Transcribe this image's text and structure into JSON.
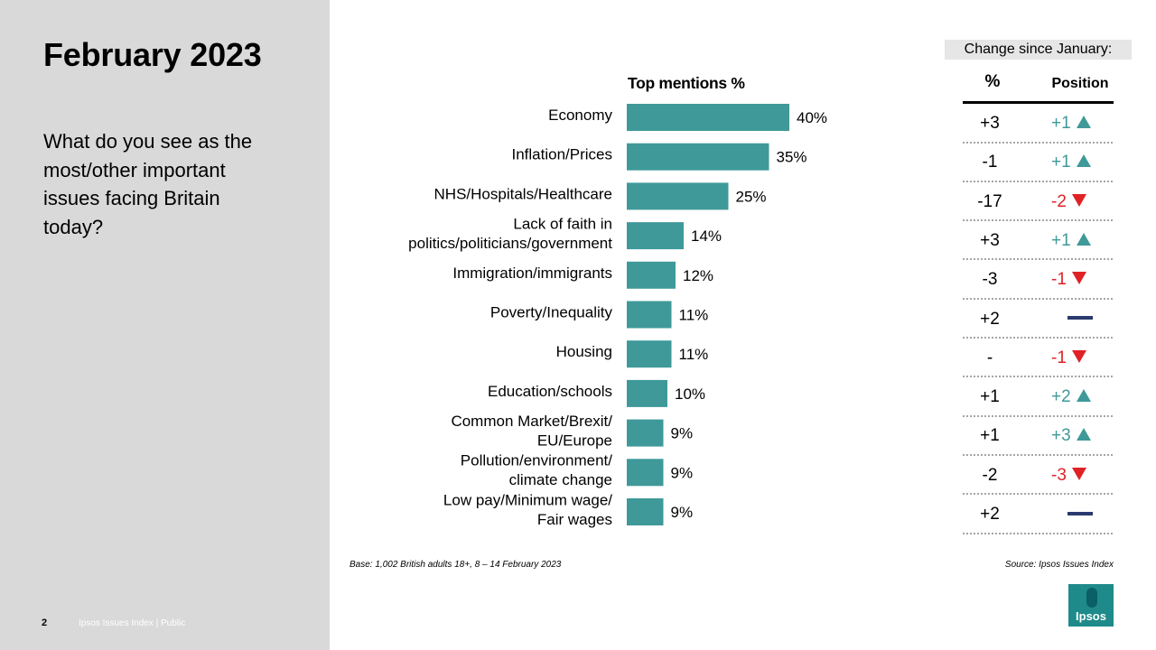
{
  "slide": {
    "title": "February 2023",
    "question": "What do you see as the most/other important issues facing Britain today?",
    "page_number": "2",
    "footer": "Ipsos Issues Index | Public",
    "base_note": "Base: 1,002 British adults 18+, 8 – 14 February 2023",
    "source_note": "Source: Ipsos Issues Index",
    "logo_text": "Ipsos"
  },
  "chart_data": {
    "type": "bar",
    "orientation": "horizontal",
    "title": "Top mentions %",
    "categories": [
      [
        "Economy"
      ],
      [
        "Inflation/Prices"
      ],
      [
        "NHS/Hospitals/Healthcare"
      ],
      [
        "Lack of faith in",
        "politics/politicians/government"
      ],
      [
        "Immigration/immigrants"
      ],
      [
        "Poverty/Inequality"
      ],
      [
        "Housing"
      ],
      [
        "Education/schools"
      ],
      [
        "Common Market/Brexit/",
        "EU/Europe"
      ],
      [
        "Pollution/environment/",
        "climate change"
      ],
      [
        "Low pay/Minimum wage/",
        "Fair wages"
      ]
    ],
    "values": [
      40,
      35,
      25,
      14,
      12,
      11,
      11,
      10,
      9,
      9,
      9
    ],
    "value_labels": [
      "40%",
      "35%",
      "25%",
      "14%",
      "12%",
      "11%",
      "11%",
      "10%",
      "9%",
      "9%",
      "9%"
    ],
    "bar_color": "#3f9999",
    "xlim": [
      0,
      40
    ],
    "grid": false
  },
  "change_table": {
    "header": "Change since January:",
    "col_pct": "%",
    "col_position": "Position",
    "rows": [
      {
        "pct": "+3",
        "position": "+1",
        "dir": "up"
      },
      {
        "pct": "-1",
        "position": "+1",
        "dir": "up"
      },
      {
        "pct": "-17",
        "position": "-2",
        "dir": "down"
      },
      {
        "pct": "+3",
        "position": "+1",
        "dir": "up"
      },
      {
        "pct": "-3",
        "position": "-1",
        "dir": "down"
      },
      {
        "pct": "+2",
        "position": "",
        "dir": "none"
      },
      {
        "pct": "-",
        "position": "-1",
        "dir": "down"
      },
      {
        "pct": "+1",
        "position": "+2",
        "dir": "up"
      },
      {
        "pct": "+1",
        "position": "+3",
        "dir": "up"
      },
      {
        "pct": "-2",
        "position": "-3",
        "dir": "down"
      },
      {
        "pct": "+2",
        "position": "",
        "dir": "none"
      }
    ]
  },
  "colors": {
    "up": "#3f9999",
    "down": "#e02226",
    "no_change": "#2b3a6e",
    "left_panel": "#d9d9d9"
  }
}
